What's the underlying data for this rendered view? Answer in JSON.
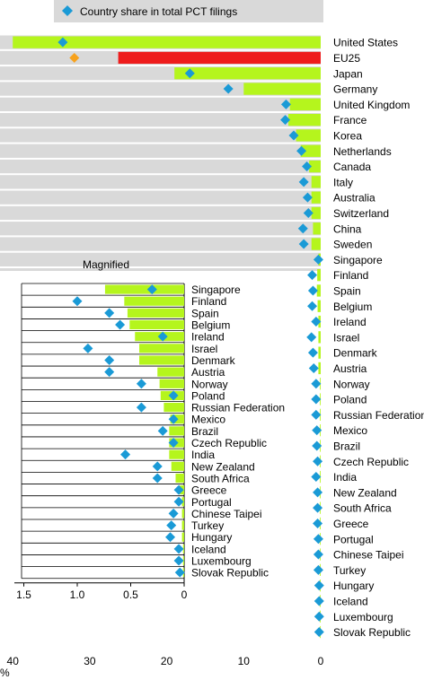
{
  "legend": {
    "label": "Country share in total PCT filings",
    "position": "top-left"
  },
  "inset": {
    "title": "Magnified"
  },
  "colors": {
    "bar": "#b5f51d",
    "eu_bar": "#ee1c1c",
    "marker": "#1a9ad6",
    "eu_marker": "#f7a21d",
    "row_band": "#d9d9d9"
  },
  "chart_data": [
    {
      "type": "bar",
      "orientation": "horizontal",
      "direction": "right-to-left",
      "categories": [
        "United States",
        "EU25",
        "Japan",
        "Germany",
        "United Kingdom",
        "France",
        "Korea",
        "Netherlands",
        "Canada",
        "Italy",
        "Australia",
        "Switzerland",
        "China",
        "Sweden",
        "Singapore",
        "Finland",
        "Spain",
        "Belgium",
        "Ireland",
        "Israel",
        "Denmark",
        "Austria",
        "Norway",
        "Poland",
        "Russian Federation",
        "Mexico",
        "Brazil",
        "Czech Republic",
        "India",
        "New Zealand",
        "South Africa",
        "Greece",
        "Portugal",
        "Chinese Taipei",
        "Turkey",
        "Hungary",
        "Iceland",
        "Luxembourg",
        "Slovak Republic"
      ],
      "series": [
        {
          "name": "",
          "values": [
            40.0,
            26.3,
            19.0,
            10.0,
            4.0,
            4.2,
            3.2,
            2.6,
            1.5,
            1.2,
            1.2,
            1.2,
            1.0,
            1.2,
            0.3,
            0.45,
            0.5,
            0.4,
            0.3,
            0.3,
            0.3,
            0.3,
            0.1,
            0.1,
            0.1,
            0.1,
            0.1,
            0.1,
            0.1,
            0.1,
            0.1,
            0.1,
            0.1,
            0.1,
            0.1,
            0.1,
            0.1,
            0.1,
            0.1
          ]
        },
        {
          "name": "Country share in total PCT filings",
          "values": [
            33.5,
            32.0,
            17.0,
            12.0,
            4.5,
            4.6,
            3.5,
            2.5,
            1.8,
            2.2,
            1.7,
            1.6,
            2.3,
            2.2,
            0.3,
            1.1,
            1.0,
            1.1,
            0.6,
            1.2,
            1.0,
            0.9,
            0.6,
            0.6,
            0.6,
            0.5,
            0.5,
            0.4,
            0.6,
            0.4,
            0.4,
            0.4,
            0.3,
            0.3,
            0.3,
            0.2,
            0.2,
            0.2,
            0.2
          ]
        }
      ],
      "xlabel": "%",
      "xlim": [
        0,
        41.5
      ],
      "xticks": [
        40,
        30,
        20,
        10,
        0
      ],
      "grid": false
    },
    {
      "type": "bar",
      "orientation": "horizontal",
      "direction": "right-to-left",
      "title": "Magnified",
      "categories": [
        "Singapore",
        "Finland",
        "Spain",
        "Belgium",
        "Ireland",
        "Israel",
        "Denmark",
        "Austria",
        "Norway",
        "Poland",
        "Russian Federation",
        "Mexico",
        "Brazil",
        "Czech Republic",
        "India",
        "New Zealand",
        "South Africa",
        "Greece",
        "Portugal",
        "Chinese Taipei",
        "Turkey",
        "Hungary",
        "Iceland",
        "Luxembourg",
        "Slovak Republic"
      ],
      "series": [
        {
          "name": "",
          "values": [
            0.74,
            0.56,
            0.53,
            0.51,
            0.46,
            0.42,
            0.42,
            0.25,
            0.23,
            0.22,
            0.19,
            0.13,
            0.14,
            0.14,
            0.14,
            0.12,
            0.08,
            0.04,
            0.02,
            0.02,
            0.02,
            0.02,
            0.01,
            0.01,
            0.01
          ]
        },
        {
          "name": "Country share in total PCT filings",
          "values": [
            0.3,
            1.0,
            0.7,
            0.6,
            0.2,
            0.9,
            0.7,
            0.7,
            0.4,
            0.1,
            0.4,
            0.1,
            0.2,
            0.1,
            0.55,
            0.25,
            0.25,
            0.05,
            0.05,
            0.1,
            0.12,
            0.13,
            0.05,
            0.05,
            0.04
          ]
        }
      ],
      "xlim": [
        0,
        1.6
      ],
      "xticks": [
        "1.5",
        "1.0",
        "0.5",
        "0"
      ],
      "grid": true
    }
  ]
}
